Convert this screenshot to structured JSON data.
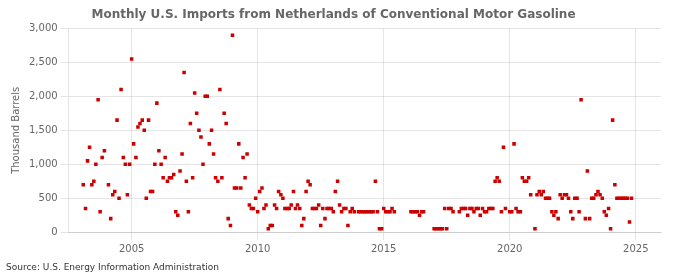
{
  "chart_data": {
    "type": "scatter",
    "title": "Monthly U.S. Imports from Netherlands of Conventional Motor Gasoline",
    "ylabel": "Thousand Barrels",
    "annotation": "Source: U.S. Energy Information Administration",
    "color": "#cc0000",
    "marker": "square",
    "grid": true,
    "xlim": [
      2002.5,
      2026.0
    ],
    "ylim": [
      0,
      3000
    ],
    "xticks": [
      2005,
      2010,
      2015,
      2020,
      2025
    ],
    "yticks": [
      0,
      500,
      {
        "value": 1000,
        "label": "1,000"
      },
      {
        "value": 1500,
        "label": "1,500"
      },
      {
        "value": 2000,
        "label": "2,000"
      },
      {
        "value": 2500,
        "label": "2,500"
      },
      {
        "value": 3000,
        "label": "3,000"
      }
    ],
    "x": [
      2003.08,
      2003.17,
      2003.25,
      2003.33,
      2003.42,
      2003.5,
      2003.58,
      2003.67,
      2003.75,
      2003.83,
      2003.92,
      2004.08,
      2004.17,
      2004.25,
      2004.33,
      2004.42,
      2004.5,
      2004.58,
      2004.67,
      2004.75,
      2004.83,
      2004.92,
      2005.0,
      2005.08,
      2005.17,
      2005.25,
      2005.33,
      2005.42,
      2005.5,
      2005.58,
      2005.67,
      2005.75,
      2005.83,
      2005.92,
      2006.0,
      2006.08,
      2006.17,
      2006.25,
      2006.33,
      2006.42,
      2006.5,
      2006.58,
      2006.67,
      2006.75,
      2006.83,
      2006.92,
      2007.0,
      2007.08,
      2007.17,
      2007.25,
      2007.33,
      2007.42,
      2007.5,
      2007.58,
      2007.67,
      2007.75,
      2007.83,
      2007.92,
      2008.0,
      2008.08,
      2008.17,
      2008.25,
      2008.33,
      2008.42,
      2008.5,
      2008.58,
      2008.67,
      2008.75,
      2008.83,
      2008.92,
      2009.0,
      2009.08,
      2009.17,
      2009.25,
      2009.33,
      2009.42,
      2009.5,
      2009.58,
      2009.67,
      2009.75,
      2009.83,
      2009.92,
      2010.0,
      2010.08,
      2010.17,
      2010.25,
      2010.33,
      2010.42,
      2010.5,
      2010.58,
      2010.67,
      2010.75,
      2010.83,
      2010.92,
      2011.0,
      2011.08,
      2011.17,
      2011.25,
      2011.33,
      2011.42,
      2011.5,
      2011.58,
      2011.67,
      2011.75,
      2011.83,
      2011.92,
      2012.0,
      2012.08,
      2012.17,
      2012.25,
      2012.33,
      2012.42,
      2012.5,
      2012.58,
      2012.67,
      2012.75,
      2012.83,
      2012.92,
      2013.0,
      2013.08,
      2013.17,
      2013.25,
      2013.33,
      2013.42,
      2013.5,
      2013.58,
      2013.67,
      2013.75,
      2013.83,
      2014.0,
      2014.08,
      2014.17,
      2014.25,
      2014.33,
      2014.42,
      2014.5,
      2014.58,
      2014.67,
      2014.75,
      2014.83,
      2014.92,
      2015.0,
      2015.08,
      2015.17,
      2015.25,
      2015.33,
      2015.42,
      2016.08,
      2016.17,
      2016.25,
      2016.33,
      2016.42,
      2016.5,
      2016.58,
      2017.0,
      2017.08,
      2017.17,
      2017.25,
      2017.33,
      2017.42,
      2017.5,
      2017.58,
      2017.67,
      2017.75,
      2018.0,
      2018.08,
      2018.17,
      2018.25,
      2018.33,
      2018.42,
      2018.5,
      2018.58,
      2018.67,
      2018.75,
      2018.83,
      2018.92,
      2019.0,
      2019.08,
      2019.17,
      2019.25,
      2019.33,
      2019.42,
      2019.5,
      2019.58,
      2019.67,
      2019.75,
      2019.83,
      2020.0,
      2020.08,
      2020.17,
      2020.25,
      2020.33,
      2020.42,
      2020.5,
      2020.58,
      2020.67,
      2020.75,
      2020.83,
      2021.0,
      2021.08,
      2021.17,
      2021.25,
      2021.33,
      2021.42,
      2021.5,
      2021.58,
      2021.67,
      2021.75,
      2021.83,
      2021.92,
      2022.0,
      2022.08,
      2022.17,
      2022.25,
      2022.33,
      2022.42,
      2022.5,
      2022.58,
      2022.67,
      2022.75,
      2022.83,
      2023.0,
      2023.08,
      2023.17,
      2023.25,
      2023.33,
      2023.42,
      2023.5,
      2023.58,
      2023.67,
      2023.75,
      2023.83,
      2023.92,
      2024.0,
      2024.08,
      2024.17,
      2024.25,
      2024.33,
      2024.42,
      2024.5,
      2024.58,
      2024.67,
      2024.75,
      2024.83
    ],
    "values": [
      700,
      350,
      1050,
      1250,
      700,
      750,
      1000,
      1950,
      300,
      1100,
      1200,
      700,
      200,
      550,
      600,
      1650,
      500,
      2100,
      1100,
      1000,
      550,
      1000,
      2550,
      1300,
      1100,
      1550,
      1600,
      1650,
      1500,
      500,
      1650,
      600,
      600,
      1000,
      1900,
      1200,
      1000,
      800,
      1100,
      750,
      800,
      800,
      850,
      300,
      250,
      900,
      1150,
      2350,
      750,
      300,
      1600,
      800,
      2050,
      1750,
      1500,
      1400,
      1000,
      2000,
      2000,
      1300,
      1500,
      1150,
      800,
      750,
      2100,
      800,
      1750,
      1600,
      200,
      100,
      2900,
      650,
      650,
      1300,
      650,
      1100,
      800,
      1150,
      400,
      350,
      350,
      500,
      300,
      600,
      650,
      350,
      400,
      50,
      100,
      100,
      400,
      350,
      600,
      550,
      500,
      350,
      350,
      350,
      400,
      600,
      350,
      400,
      350,
      100,
      200,
      600,
      750,
      700,
      350,
      350,
      350,
      400,
      100,
      350,
      200,
      350,
      350,
      350,
      300,
      600,
      750,
      400,
      300,
      350,
      350,
      100,
      300,
      350,
      300,
      300,
      300,
      300,
      300,
      300,
      300,
      300,
      300,
      750,
      300,
      50,
      50,
      350,
      300,
      300,
      300,
      350,
      300,
      300,
      300,
      300,
      300,
      250,
      300,
      300,
      50,
      50,
      50,
      50,
      50,
      350,
      50,
      350,
      350,
      300,
      300,
      350,
      350,
      350,
      250,
      350,
      350,
      300,
      350,
      350,
      250,
      350,
      300,
      300,
      350,
      350,
      350,
      750,
      800,
      750,
      300,
      1250,
      350,
      300,
      300,
      1300,
      350,
      300,
      300,
      800,
      750,
      750,
      800,
      550,
      50,
      550,
      600,
      550,
      600,
      500,
      500,
      500,
      300,
      250,
      300,
      200,
      550,
      500,
      550,
      550,
      500,
      300,
      200,
      500,
      500,
      300,
      1950,
      200,
      900,
      200,
      500,
      500,
      550,
      600,
      550,
      500,
      300,
      250,
      350,
      50,
      1650,
      700,
      500,
      500,
      500,
      500,
      500,
      500,
      150,
      500
    ]
  }
}
